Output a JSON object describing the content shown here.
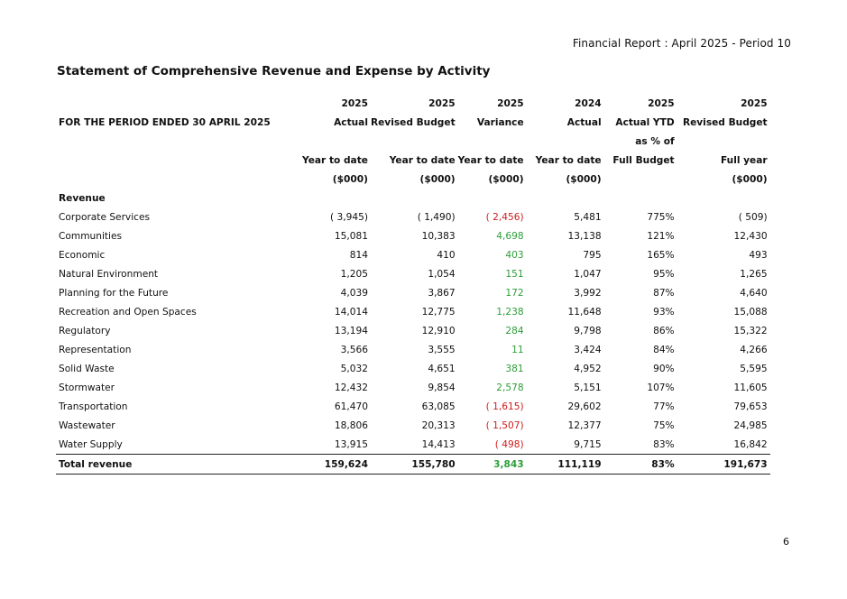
{
  "header": {
    "report_title": "Financial Report :  April 2025 - Period 10"
  },
  "page_title": "Statement of Comprehensive Revenue and Expense by Activity",
  "table": {
    "period_label": "FOR THE PERIOD ENDED 30 APRIL 2025",
    "columns": [
      {
        "year": "2025",
        "name": "Actual",
        "name2": "",
        "basis": "Year to date",
        "unit": "($000)"
      },
      {
        "year": "2025",
        "name": "Revised Budget",
        "name2": "",
        "basis": "Year to date",
        "unit": "($000)"
      },
      {
        "year": "2025",
        "name": "Variance",
        "name2": "",
        "basis": "Year to date",
        "unit": "($000)"
      },
      {
        "year": "2024",
        "name": "Actual",
        "name2": "",
        "basis": "Year to date",
        "unit": "($000)"
      },
      {
        "year": "2025",
        "name": "Actual YTD",
        "name2": "as % of",
        "basis": "Full Budget",
        "unit": ""
      },
      {
        "year": "2025",
        "name": "Revised Budget",
        "name2": "",
        "basis": "Full year",
        "unit": "($000)"
      }
    ],
    "section_label": "Revenue",
    "rows": [
      {
        "label": "Corporate Services",
        "actual": "( 3,945)",
        "budget": "( 1,490)",
        "variance": "( 2,456)",
        "variance_sign": "negative",
        "prior": "5,481",
        "pct": "775%",
        "full": "( 509)"
      },
      {
        "label": "Communities",
        "actual": "15,081",
        "budget": "10,383",
        "variance": "4,698",
        "variance_sign": "positive",
        "prior": "13,138",
        "pct": "121%",
        "full": "12,430"
      },
      {
        "label": "Economic",
        "actual": "814",
        "budget": "410",
        "variance": "403",
        "variance_sign": "positive",
        "prior": "795",
        "pct": "165%",
        "full": "493"
      },
      {
        "label": "Natural Environment",
        "actual": "1,205",
        "budget": "1,054",
        "variance": "151",
        "variance_sign": "positive",
        "prior": "1,047",
        "pct": "95%",
        "full": "1,265"
      },
      {
        "label": "Planning for the Future",
        "actual": "4,039",
        "budget": "3,867",
        "variance": "172",
        "variance_sign": "positive",
        "prior": "3,992",
        "pct": "87%",
        "full": "4,640"
      },
      {
        "label": "Recreation and Open Spaces",
        "actual": "14,014",
        "budget": "12,775",
        "variance": "1,238",
        "variance_sign": "positive",
        "prior": "11,648",
        "pct": "93%",
        "full": "15,088"
      },
      {
        "label": "Regulatory",
        "actual": "13,194",
        "budget": "12,910",
        "variance": "284",
        "variance_sign": "positive",
        "prior": "9,798",
        "pct": "86%",
        "full": "15,322"
      },
      {
        "label": "Representation",
        "actual": "3,566",
        "budget": "3,555",
        "variance": "11",
        "variance_sign": "positive",
        "prior": "3,424",
        "pct": "84%",
        "full": "4,266"
      },
      {
        "label": "Solid Waste",
        "actual": "5,032",
        "budget": "4,651",
        "variance": "381",
        "variance_sign": "positive",
        "prior": "4,952",
        "pct": "90%",
        "full": "5,595"
      },
      {
        "label": "Stormwater",
        "actual": "12,432",
        "budget": "9,854",
        "variance": "2,578",
        "variance_sign": "positive",
        "prior": "5,151",
        "pct": "107%",
        "full": "11,605"
      },
      {
        "label": "Transportation",
        "actual": "61,470",
        "budget": "63,085",
        "variance": "( 1,615)",
        "variance_sign": "negative",
        "prior": "29,602",
        "pct": "77%",
        "full": "79,653"
      },
      {
        "label": "Wastewater",
        "actual": "18,806",
        "budget": "20,313",
        "variance": "( 1,507)",
        "variance_sign": "negative",
        "prior": "12,377",
        "pct": "75%",
        "full": "24,985"
      },
      {
        "label": "Water Supply",
        "actual": "13,915",
        "budget": "14,413",
        "variance": "( 498)",
        "variance_sign": "negative",
        "prior": "9,715",
        "pct": "83%",
        "full": "16,842"
      }
    ],
    "total": {
      "label": "Total revenue",
      "actual": "159,624",
      "budget": "155,780",
      "variance": "3,843",
      "variance_sign": "positive",
      "prior": "111,119",
      "pct": "83%",
      "full": "191,673"
    }
  },
  "colors": {
    "positive_variance": "#2e9e3a",
    "negative_variance": "#d01c1c"
  },
  "footer": {
    "page_number": "6"
  }
}
